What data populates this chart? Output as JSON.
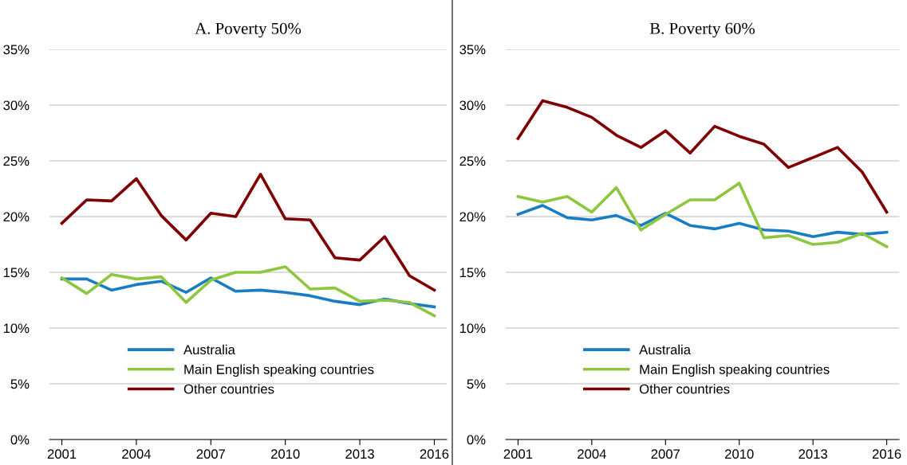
{
  "chart_data": [
    {
      "type": "line",
      "title": "A. Poverty 50%",
      "x": [
        2001,
        2002,
        2003,
        2004,
        2005,
        2006,
        2007,
        2008,
        2009,
        2010,
        2011,
        2012,
        2013,
        2014,
        2015,
        2016
      ],
      "series": [
        {
          "name": "Australia",
          "color": "#1a7dc4",
          "values": [
            14.4,
            14.4,
            13.4,
            13.9,
            14.2,
            13.2,
            14.5,
            13.3,
            13.4,
            13.2,
            12.9,
            12.4,
            12.1,
            12.6,
            12.2,
            11.9
          ]
        },
        {
          "name": "Main English speaking countries",
          "color": "#8dc63f",
          "values": [
            14.5,
            13.1,
            14.8,
            14.4,
            14.6,
            12.3,
            14.3,
            15.0,
            15.0,
            15.5,
            13.5,
            13.6,
            12.4,
            12.5,
            12.3,
            11.1
          ]
        },
        {
          "name": "Other countries",
          "color": "#7f0000",
          "values": [
            19.4,
            21.5,
            21.4,
            23.4,
            20.1,
            17.9,
            20.3,
            20.0,
            23.8,
            19.8,
            19.7,
            16.3,
            16.1,
            18.2,
            14.7,
            13.4
          ]
        }
      ],
      "xlim": [
        2000.5,
        2016.5
      ],
      "xticks": [
        2001,
        2004,
        2007,
        2010,
        2013,
        2016
      ],
      "ylim": [
        0,
        35
      ],
      "yticks": [
        {
          "value": 0,
          "label": "0%"
        },
        {
          "value": 5,
          "label": "5%"
        },
        {
          "value": 10,
          "label": "10%"
        },
        {
          "value": 15,
          "label": "15%"
        },
        {
          "value": 20,
          "label": "20%"
        },
        {
          "value": 25,
          "label": "25%"
        },
        {
          "value": 30,
          "label": "30%"
        },
        {
          "value": 35,
          "label": "35%"
        }
      ],
      "grid": "y",
      "legend": "bottom left",
      "marker": "none",
      "line_style": "solid"
    },
    {
      "type": "line",
      "title": "B. Poverty 60%",
      "x": [
        2001,
        2002,
        2003,
        2004,
        2005,
        2006,
        2007,
        2008,
        2009,
        2010,
        2011,
        2012,
        2013,
        2014,
        2015,
        2016
      ],
      "series": [
        {
          "name": "Australia",
          "color": "#1a7dc4",
          "values": [
            20.2,
            21.0,
            19.9,
            19.7,
            20.1,
            19.2,
            20.3,
            19.2,
            18.9,
            19.4,
            18.8,
            18.7,
            18.2,
            18.6,
            18.4,
            18.6
          ]
        },
        {
          "name": "Main English speaking countries",
          "color": "#8dc63f",
          "values": [
            21.8,
            21.3,
            21.8,
            20.4,
            22.6,
            18.8,
            20.2,
            21.5,
            21.5,
            23.0,
            18.1,
            18.3,
            17.5,
            17.7,
            18.5,
            17.3
          ]
        },
        {
          "name": "Other countries",
          "color": "#7f0000",
          "values": [
            27.0,
            30.4,
            29.8,
            28.9,
            27.3,
            26.2,
            27.7,
            25.7,
            28.1,
            27.2,
            26.5,
            24.4,
            25.3,
            26.2,
            24.0,
            20.4
          ]
        }
      ],
      "xlim": [
        2000.5,
        2016.5
      ],
      "xticks": [
        2001,
        2004,
        2007,
        2010,
        2013,
        2016
      ],
      "ylim": [
        0,
        35
      ],
      "yticks": [
        {
          "value": 0,
          "label": "0%"
        },
        {
          "value": 5,
          "label": "5%"
        },
        {
          "value": 10,
          "label": "10%"
        },
        {
          "value": 15,
          "label": "15%"
        },
        {
          "value": 20,
          "label": "20%"
        },
        {
          "value": 25,
          "label": "25%"
        },
        {
          "value": 30,
          "label": "30%"
        },
        {
          "value": 35,
          "label": "35%"
        }
      ],
      "grid": "y",
      "legend": "bottom left",
      "marker": "none",
      "line_style": "solid"
    }
  ]
}
